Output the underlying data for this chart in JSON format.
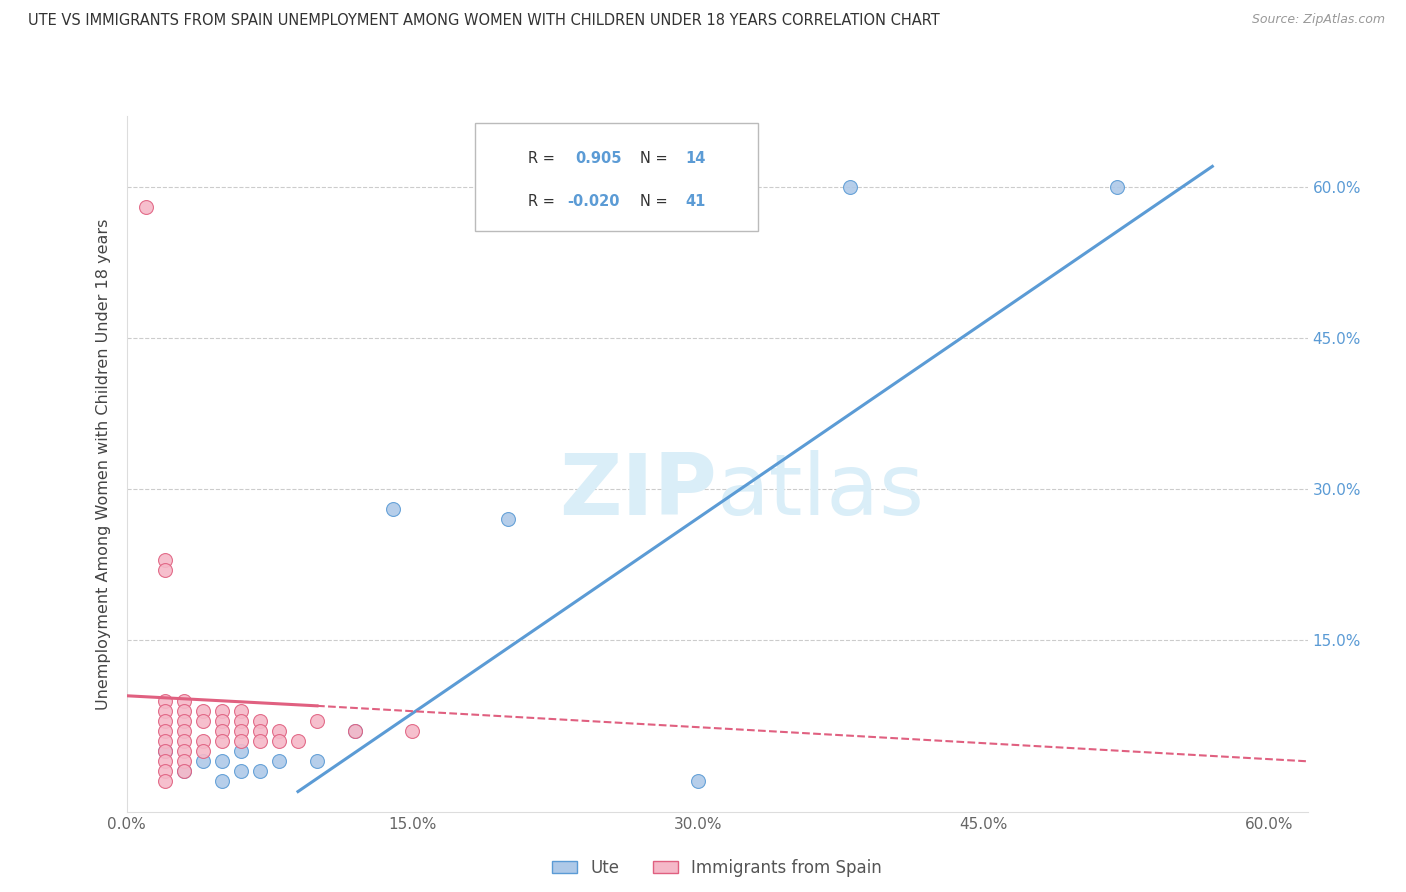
{
  "title": "UTE VS IMMIGRANTS FROM SPAIN UNEMPLOYMENT AMONG WOMEN WITH CHILDREN UNDER 18 YEARS CORRELATION CHART",
  "source": "Source: ZipAtlas.com",
  "ylabel": "Unemployment Among Women with Children Under 18 years",
  "xlim": [
    0.0,
    0.62
  ],
  "ylim": [
    -0.02,
    0.67
  ],
  "xtick_labels": [
    "0.0%",
    "15.0%",
    "30.0%",
    "45.0%",
    "60.0%"
  ],
  "xtick_vals": [
    0.0,
    0.15,
    0.3,
    0.45,
    0.6
  ],
  "ytick_vals": [
    0.15,
    0.3,
    0.45,
    0.6
  ],
  "ytick_labels": [
    "15.0%",
    "30.0%",
    "45.0%",
    "60.0%"
  ],
  "blue_color": "#aec9e8",
  "pink_color": "#f5b8c8",
  "blue_line_color": "#5b9bd5",
  "pink_line_color": "#e06080",
  "watermark_color": "#daeef8",
  "blue_scatter": [
    [
      0.02,
      0.04
    ],
    [
      0.03,
      0.02
    ],
    [
      0.04,
      0.03
    ],
    [
      0.05,
      0.03
    ],
    [
      0.05,
      0.01
    ],
    [
      0.06,
      0.04
    ],
    [
      0.06,
      0.02
    ],
    [
      0.07,
      0.02
    ],
    [
      0.08,
      0.03
    ],
    [
      0.1,
      0.03
    ],
    [
      0.12,
      0.06
    ],
    [
      0.14,
      0.28
    ],
    [
      0.2,
      0.27
    ],
    [
      0.38,
      0.6
    ],
    [
      0.52,
      0.6
    ],
    [
      0.3,
      0.01
    ]
  ],
  "pink_scatter": [
    [
      0.01,
      0.58
    ],
    [
      0.02,
      0.23
    ],
    [
      0.02,
      0.22
    ],
    [
      0.02,
      0.09
    ],
    [
      0.02,
      0.08
    ],
    [
      0.02,
      0.07
    ],
    [
      0.02,
      0.06
    ],
    [
      0.02,
      0.05
    ],
    [
      0.02,
      0.04
    ],
    [
      0.02,
      0.03
    ],
    [
      0.02,
      0.02
    ],
    [
      0.02,
      0.01
    ],
    [
      0.03,
      0.09
    ],
    [
      0.03,
      0.08
    ],
    [
      0.03,
      0.07
    ],
    [
      0.03,
      0.06
    ],
    [
      0.03,
      0.05
    ],
    [
      0.03,
      0.04
    ],
    [
      0.03,
      0.03
    ],
    [
      0.03,
      0.02
    ],
    [
      0.04,
      0.08
    ],
    [
      0.04,
      0.07
    ],
    [
      0.04,
      0.05
    ],
    [
      0.04,
      0.04
    ],
    [
      0.05,
      0.08
    ],
    [
      0.05,
      0.07
    ],
    [
      0.05,
      0.06
    ],
    [
      0.05,
      0.05
    ],
    [
      0.06,
      0.08
    ],
    [
      0.06,
      0.07
    ],
    [
      0.06,
      0.06
    ],
    [
      0.06,
      0.05
    ],
    [
      0.07,
      0.07
    ],
    [
      0.07,
      0.06
    ],
    [
      0.07,
      0.05
    ],
    [
      0.08,
      0.06
    ],
    [
      0.08,
      0.05
    ],
    [
      0.09,
      0.05
    ],
    [
      0.1,
      0.07
    ],
    [
      0.12,
      0.06
    ],
    [
      0.15,
      0.06
    ]
  ],
  "blue_line": [
    [
      0.09,
      0.0
    ],
    [
      0.57,
      0.62
    ]
  ],
  "pink_line_solid": [
    [
      0.0,
      0.095
    ],
    [
      0.1,
      0.085
    ]
  ],
  "pink_line_dashed": [
    [
      0.1,
      0.085
    ],
    [
      0.62,
      0.03
    ]
  ]
}
